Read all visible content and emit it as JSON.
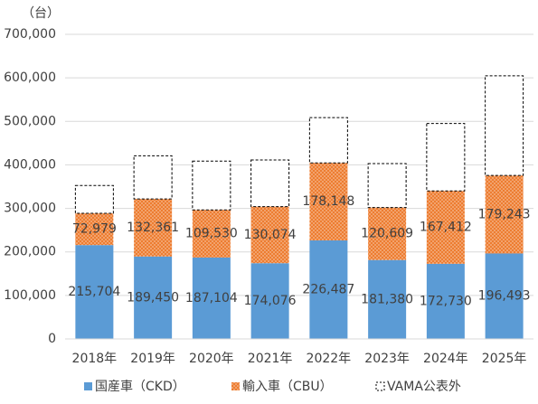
{
  "chart_data": {
    "type": "stacked-bar",
    "y_unit": "（台）",
    "categories": [
      "2018年",
      "2019年",
      "2020年",
      "2021年",
      "2022年",
      "2023年",
      "2024年",
      "2025年"
    ],
    "series": [
      {
        "name": "国産車（CKD）",
        "color": "#5b9bd5",
        "values": [
          215704,
          189450,
          187104,
          174076,
          226487,
          181380,
          172730,
          196493
        ],
        "value_labels": [
          "215,704",
          "189,450",
          "187,104",
          "174,076",
          "226,487",
          "181,380",
          "172,730",
          "196,493"
        ]
      },
      {
        "name": "輸入車（CBU）",
        "color": "#ed7d31",
        "pattern": "dots",
        "values": [
          72979,
          132361,
          109530,
          130074,
          178148,
          120609,
          167412,
          179243
        ],
        "value_labels": [
          "72,979",
          "132,361",
          "109,530",
          "130,074",
          "178,148",
          "120,609",
          "167,412",
          "179,243"
        ]
      },
      {
        "name": "VAMA公表外",
        "color": "#000000",
        "outline": "dashed",
        "values": [
          64000,
          99000,
          112000,
          107000,
          104000,
          101000,
          155000,
          229000
        ]
      }
    ],
    "ylim": [
      0,
      700000
    ],
    "yticks": [
      {
        "value": 0,
        "label": "0"
      },
      {
        "value": 100000,
        "label": "100,000"
      },
      {
        "value": 200000,
        "label": "200,000"
      },
      {
        "value": 300000,
        "label": "300,000"
      },
      {
        "value": 400000,
        "label": "400,000"
      },
      {
        "value": 500000,
        "label": "500,000"
      },
      {
        "value": 600000,
        "label": "600,000"
      },
      {
        "value": 700000,
        "label": "700,000"
      }
    ],
    "grid": true
  }
}
